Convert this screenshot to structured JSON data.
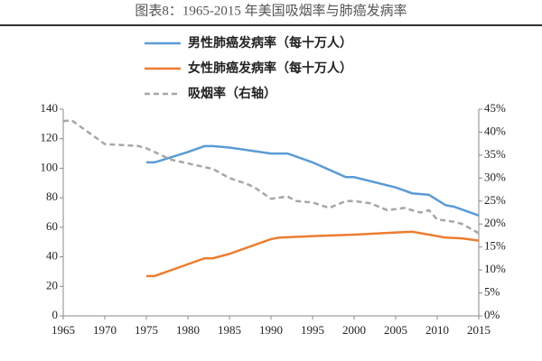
{
  "chart_data": {
    "type": "line",
    "title": "图表8：1965-2015 年美国吸烟率与肺癌发病率",
    "xlim": [
      1965,
      2015
    ],
    "xticks": [
      1965,
      1970,
      1975,
      1980,
      1985,
      1990,
      1995,
      2000,
      2005,
      2010,
      2015
    ],
    "ylim": [
      0,
      140
    ],
    "yticks": [
      0,
      20,
      40,
      60,
      80,
      100,
      120,
      140
    ],
    "y2lim": [
      0,
      45
    ],
    "y2ticks": [
      {
        "value": 0,
        "label": "0%"
      },
      {
        "value": 5,
        "label": "5%"
      },
      {
        "value": 10,
        "label": "10%"
      },
      {
        "value": 15,
        "label": "15%"
      },
      {
        "value": 20,
        "label": "20%"
      },
      {
        "value": 25,
        "label": "25%"
      },
      {
        "value": 30,
        "label": "30%"
      },
      {
        "value": 35,
        "label": "35%"
      },
      {
        "value": 40,
        "label": "40%"
      },
      {
        "value": 45,
        "label": "45%"
      }
    ],
    "series": [
      {
        "name": "男性肺癌发病率（每十万人）",
        "color": "#5b9bd5",
        "x": [
          1975,
          1976,
          1980,
          1982,
          1983,
          1985,
          1990,
          1992,
          1995,
          1999,
          2000,
          2005,
          2007,
          2009,
          2011,
          2012,
          2015
        ],
        "values": [
          104,
          104,
          111,
          115,
          115,
          114,
          110,
          110,
          104,
          94,
          94,
          87,
          83,
          82,
          75,
          74,
          68
        ]
      },
      {
        "name": "女性肺癌发病率（每十万人）",
        "color": "#ed7d31",
        "x": [
          1975,
          1976,
          1980,
          1982,
          1983,
          1985,
          1990,
          1991,
          1995,
          2000,
          2005,
          2007,
          2009,
          2011,
          2013,
          2015
        ],
        "values": [
          27,
          27,
          35,
          39,
          39,
          42,
          52,
          53,
          54,
          55,
          56.5,
          57,
          55,
          53,
          52.5,
          51
        ]
      },
      {
        "name": "吸烟率（右轴）",
        "color": "#a6a6a6",
        "axis": "y2",
        "dash": true,
        "x": [
          1965,
          1966,
          1970,
          1974,
          1975,
          1978,
          1980,
          1983,
          1985,
          1987,
          1988,
          1990,
          1992,
          1993,
          1995,
          1997,
          1999,
          2000,
          2002,
          2004,
          2006,
          2008,
          2009,
          2010,
          2012,
          2013,
          2015
        ],
        "values": [
          42.4,
          42.6,
          37.4,
          37,
          36.5,
          34,
          33.2,
          32,
          30,
          28.8,
          28,
          25.5,
          26,
          25,
          24.7,
          23.5,
          25,
          25,
          24.5,
          23,
          23.5,
          22.5,
          23,
          21,
          20.5,
          20,
          18
        ]
      }
    ]
  }
}
